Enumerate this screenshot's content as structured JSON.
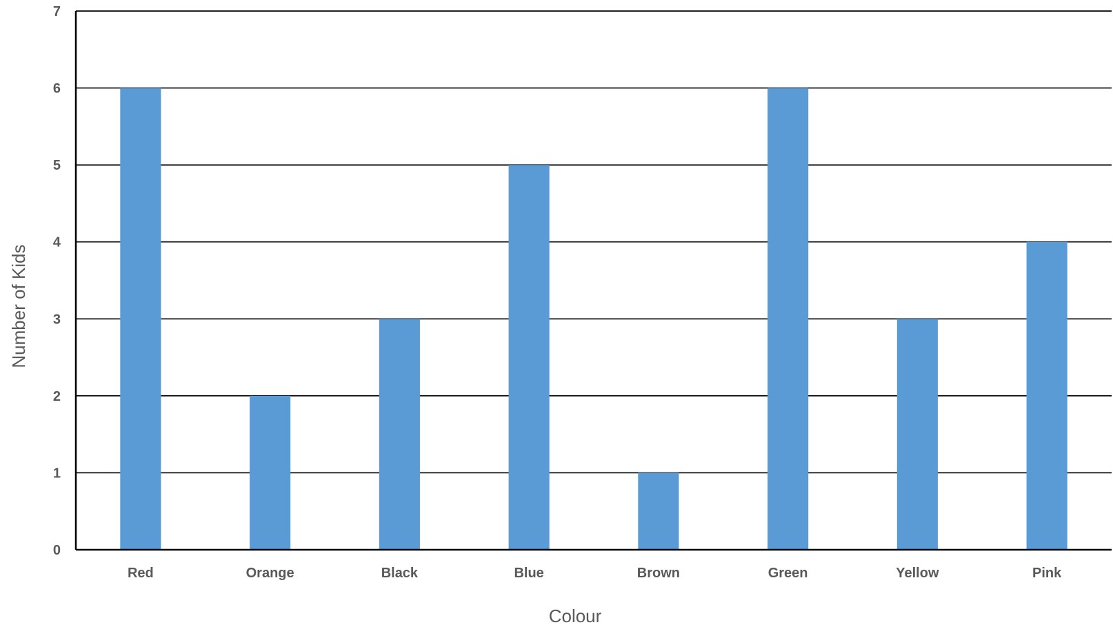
{
  "chart_data": {
    "type": "bar",
    "categories": [
      "Red",
      "Orange",
      "Black",
      "Blue",
      "Brown",
      "Green",
      "Yellow",
      "Pink"
    ],
    "values": [
      6,
      2,
      3,
      5,
      1,
      6,
      3,
      4
    ],
    "title": "",
    "xlabel": "Colour",
    "ylabel": "Number of Kids",
    "ylim": [
      0,
      7
    ],
    "yticks": [
      "0",
      "1",
      "2",
      "3",
      "4",
      "5",
      "6",
      "7"
    ],
    "grid": true,
    "legend": "none",
    "bar_color": "#5B9BD5"
  }
}
